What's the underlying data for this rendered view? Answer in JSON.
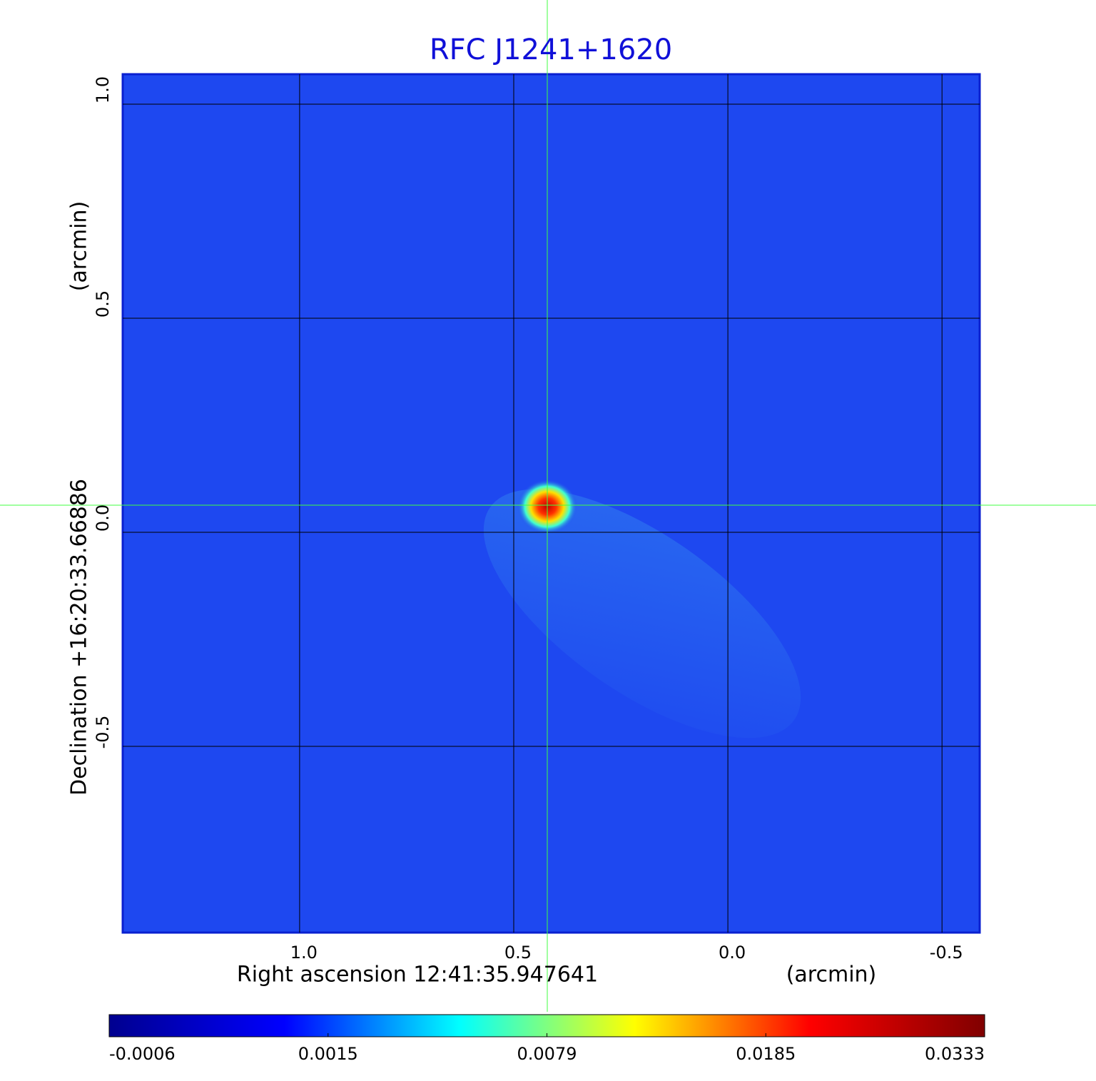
{
  "chart_data": {
    "type": "image",
    "title": "RFC J1241+1620",
    "xlabel": "Right ascension  12:41:35.947641",
    "xunit": "(arcmin)",
    "ylabel": "Declination  +16:20:33.66886",
    "yunit": "(arcmin)",
    "xlim": [
      1.413,
      -0.588
    ],
    "ylim": [
      -0.935,
      1.07
    ],
    "xticks": [
      {
        "value": 1.0,
        "label": "1.0"
      },
      {
        "value": 0.5,
        "label": "0.5"
      },
      {
        "value": 0,
        "label": "0.0"
      },
      {
        "value": -0.5,
        "label": "-0.5"
      }
    ],
    "yticks": [
      {
        "value": 1.0,
        "label": "1.0"
      },
      {
        "value": 0.5,
        "label": "0.5"
      },
      {
        "value": 0,
        "label": "0.0"
      },
      {
        "value": -0.5,
        "label": "-0.5"
      }
    ],
    "grid": true,
    "colorbar": {
      "ticks": [
        -0.0006,
        0.0015,
        0.0079,
        0.0185,
        0.0333
      ],
      "colors": [
        "#00008f",
        "#0000ff",
        "#00ffff",
        "#ffff00",
        "#ff0000",
        "#800000"
      ]
    }
  }
}
